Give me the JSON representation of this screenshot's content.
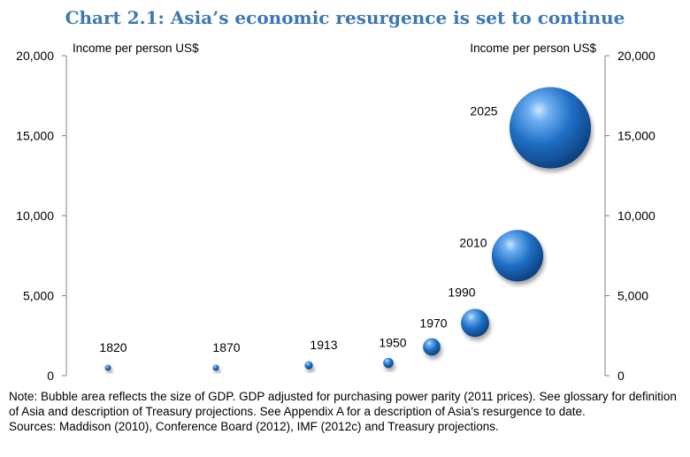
{
  "title": "Chart 2.1: Asia’s economic resurgence is set to continue",
  "ylabel_left": "Income per person US$",
  "ylabel_right": "Income per person US$",
  "note": "Note: Bubble area reflects the size of GDP. GDP adjusted for purchasing power parity (2011 prices). See glossary for definition of Asia and description of Treasury projections. See Appendix A for a description of Asia's resurgence to date.",
  "sources": "Sources: Maddison (2010), Conference Board (2012), IMF (2012c) and Treasury projections.",
  "chart_data": {
    "type": "bubble",
    "title": "Chart 2.1: Asia’s economic resurgence is set to continue",
    "ylabel": "Income per person US$",
    "ylim": [
      0,
      20000
    ],
    "yticks": [
      0,
      5000,
      10000,
      15000,
      20000
    ],
    "ytick_labels": [
      "0",
      "5,000",
      "10,000",
      "15,000",
      "20,000"
    ],
    "bubble_color": "#1f6fc5",
    "points": [
      {
        "label": "1820",
        "value": 500,
        "bubble_size": 0.6
      },
      {
        "label": "1870",
        "value": 500,
        "bubble_size": 0.6
      },
      {
        "label": "1913",
        "value": 650,
        "bubble_size": 1.0
      },
      {
        "label": "1950",
        "value": 800,
        "bubble_size": 1.6
      },
      {
        "label": "1970",
        "value": 1800,
        "bubble_size": 4.6
      },
      {
        "label": "1990",
        "value": 3300,
        "bubble_size": 12
      },
      {
        "label": "2010",
        "value": 7500,
        "bubble_size": 40
      },
      {
        "label": "2025",
        "value": 15500,
        "bubble_size": 100
      }
    ]
  }
}
